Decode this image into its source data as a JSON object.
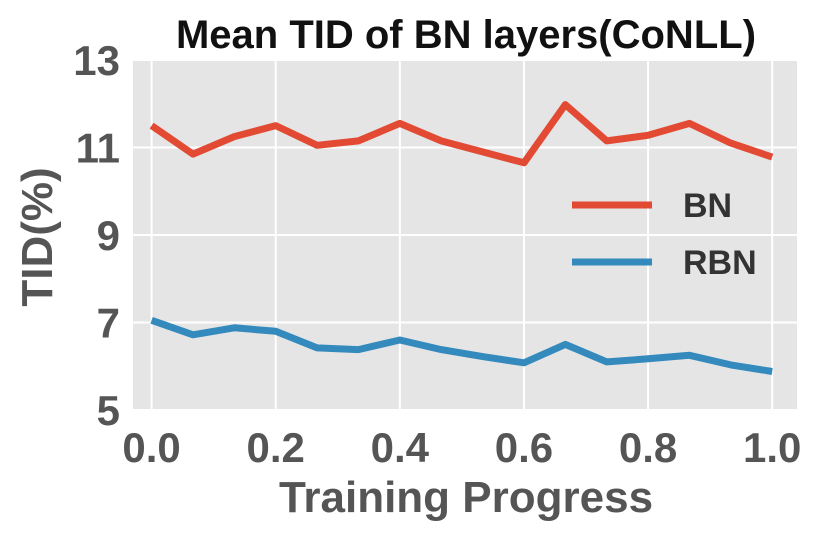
{
  "chart_data": {
    "type": "line",
    "title": "Mean TID of BN layers(CoNLL)",
    "xlabel": "Training Progress",
    "ylabel": "TID(%)",
    "xlim": [
      -0.03,
      1.04
    ],
    "ylim": [
      5,
      13
    ],
    "xticks": [
      0.0,
      0.2,
      0.4,
      0.6,
      0.8,
      1.0
    ],
    "xtick_labels": [
      "0.0",
      "0.2",
      "0.4",
      "0.6",
      "0.8",
      "1.0"
    ],
    "yticks": [
      5,
      7,
      9,
      11,
      13
    ],
    "ytick_labels": [
      "5",
      "7",
      "9",
      "11",
      "13"
    ],
    "grid": true,
    "legend_position": "right",
    "x": [
      0.0,
      0.0667,
      0.1333,
      0.2,
      0.2667,
      0.3333,
      0.4,
      0.4667,
      0.5333,
      0.6,
      0.6667,
      0.7333,
      0.8,
      0.8667,
      0.9333,
      1.0
    ],
    "series": [
      {
        "name": "BN",
        "color": "#e24a33",
        "values": [
          11.5,
          10.85,
          11.25,
          11.5,
          11.05,
          11.15,
          11.55,
          11.15,
          10.9,
          10.65,
          11.98,
          11.15,
          11.28,
          11.55,
          11.1,
          10.78
        ]
      },
      {
        "name": "RBN",
        "color": "#348abd",
        "values": [
          7.05,
          6.72,
          6.88,
          6.8,
          6.42,
          6.38,
          6.6,
          6.38,
          6.22,
          6.08,
          6.5,
          6.1,
          6.17,
          6.25,
          6.03,
          5.88
        ]
      }
    ]
  }
}
